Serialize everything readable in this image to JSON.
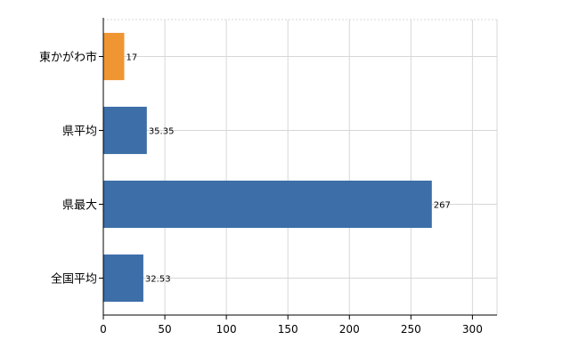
{
  "chart_data": {
    "type": "bar",
    "orientation": "horizontal",
    "categories": [
      "東かがわ市",
      "県平均",
      "県最大",
      "全国平均"
    ],
    "values": [
      17,
      35.35,
      267,
      32.53
    ],
    "value_labels": [
      "17",
      "35.35",
      "267",
      "32.53"
    ],
    "colors": [
      "#ef9632",
      "#3d6ea8",
      "#3d6ea8",
      "#3d6ea8"
    ],
    "xlim": [
      0,
      320
    ],
    "xticks": [
      0,
      50,
      100,
      150,
      200,
      250,
      300
    ],
    "xtick_labels": [
      "0",
      "50",
      "100",
      "150",
      "200",
      "250",
      "300"
    ],
    "grid": true,
    "title": "",
    "xlabel": "",
    "ylabel": ""
  }
}
